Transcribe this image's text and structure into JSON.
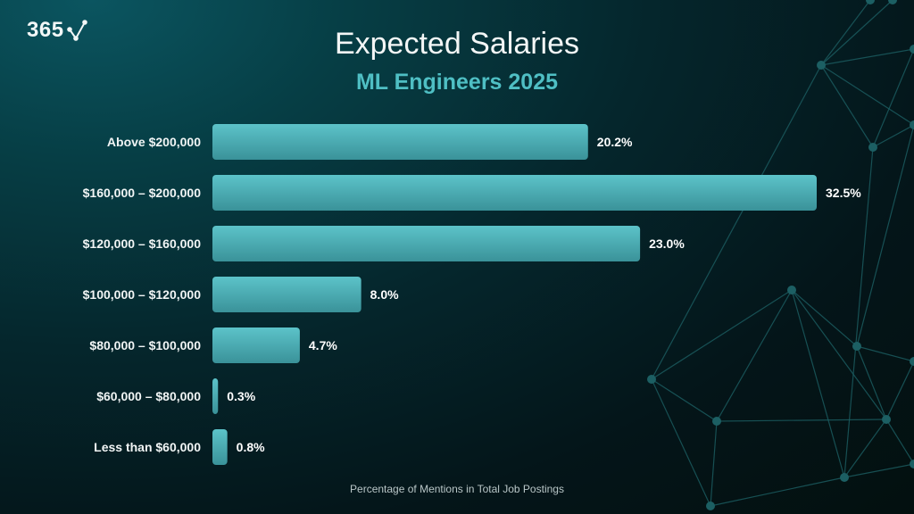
{
  "logo": {
    "text": "365",
    "icon": "check-network-icon"
  },
  "chart_data": {
    "type": "bar",
    "orientation": "horizontal",
    "title": "Expected Salaries",
    "subtitle": "ML Engineers 2025",
    "xlabel": "Percentage of Mentions in Total Job Postings",
    "ylabel": "",
    "categories": [
      "Above $200,000",
      "$160,000 – $200,000",
      "$120,000 – $160,000",
      "$100,000 – $120,000",
      "$80,000 – $100,000",
      "$60,000 – $80,000",
      "Less than $60,000"
    ],
    "values": [
      20.2,
      32.5,
      23.0,
      8.0,
      4.7,
      0.3,
      0.8
    ],
    "data_labels": [
      "20.2%",
      "32.5%",
      "23.0%",
      "8.0%",
      "4.7%",
      "0.3%",
      "0.8%"
    ],
    "xlim": [
      0,
      32.5
    ],
    "grid": false,
    "legend": "none",
    "colors": {
      "bar_top": "#5cc3c9",
      "bar_bottom": "#3a9299",
      "subtitle": "#4fbfc4",
      "network": "#1c5f63"
    }
  }
}
